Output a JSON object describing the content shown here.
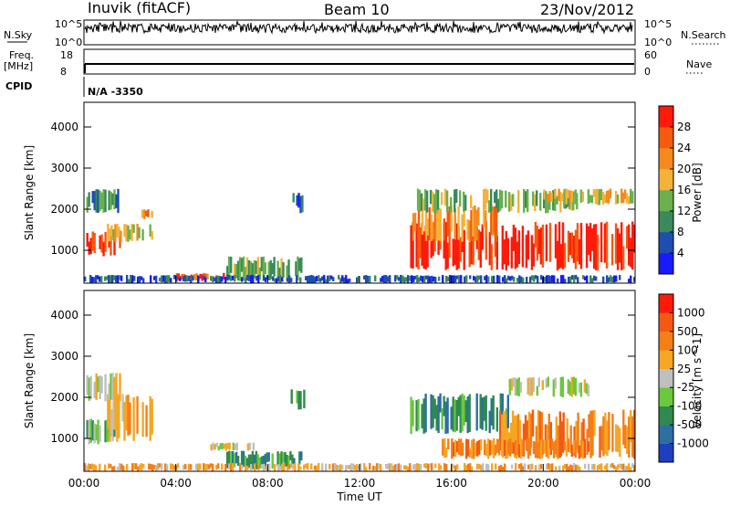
{
  "header": {
    "station": "Inuvik (fitACF)",
    "beam": "Beam 10",
    "date": "23/Nov/2012"
  },
  "aux": {
    "nsky_label": "N.Sky",
    "nsky_ticks": [
      "10^5",
      "10^0"
    ],
    "nsearch_label": "N.Search",
    "nsearch_ticks": [
      "10^5",
      "10^0"
    ],
    "freq_label": "Freq.",
    "freq_unit": "[MHz]",
    "freq_ticks": [
      "18",
      "8"
    ],
    "nave_label": "Nave",
    "nave_ticks": [
      "60",
      "0"
    ],
    "cpid_label": "CPID",
    "cpid_value": "N/A -3350"
  },
  "colors": {
    "power": [
      "#1a1aff",
      "#1e4fb0",
      "#3a8a5c",
      "#6ab04c",
      "#f4b23a",
      "#f48a1e",
      "#f45a10",
      "#ff1a0a"
    ],
    "velocity": [
      "#1f3fbf",
      "#2d6fa0",
      "#2e8a4e",
      "#6ac83c",
      "#bfbfbf",
      "#f5a623",
      "#f47e18",
      "#f25a14",
      "#ff1a0a"
    ]
  },
  "chart_data": [
    {
      "type": "heatmap",
      "quantity": "power",
      "x": [
        "00:00",
        "04:00",
        "08:00",
        "12:00",
        "16:00",
        "20:00",
        "00:00"
      ],
      "xlim": [
        0,
        24
      ],
      "ylabel": "Slant Range [km]",
      "yticks": [
        "1000",
        "2000",
        "3000",
        "4000"
      ],
      "ylim": [
        200,
        4600
      ],
      "colorbar_label": "Power [dB]",
      "colorbar_ticks": [
        "4",
        "8",
        "12",
        "16",
        "20",
        "24",
        "28"
      ],
      "regions": [
        {
          "t0": 0.1,
          "t1": 1.6,
          "r0": 850,
          "r1": 1500,
          "level": 7
        },
        {
          "t0": 1.0,
          "t1": 3.0,
          "r0": 1200,
          "r1": 1650,
          "level": 4
        },
        {
          "t0": 0.1,
          "t1": 1.6,
          "r0": 1900,
          "r1": 2500,
          "level": 2
        },
        {
          "t0": 2.5,
          "t1": 3.0,
          "r0": 1750,
          "r1": 2000,
          "level": 5
        },
        {
          "t0": 6.2,
          "t1": 9.5,
          "r0": 250,
          "r1": 850,
          "level": 3
        },
        {
          "t0": 4.0,
          "t1": 6.2,
          "r0": 250,
          "r1": 450,
          "level": 6
        },
        {
          "t0": 9.0,
          "t1": 9.7,
          "r0": 1900,
          "r1": 2400,
          "level": 1
        },
        {
          "t0": 14.2,
          "t1": 24.0,
          "r0": 500,
          "r1": 1700,
          "level": 7
        },
        {
          "t0": 14.3,
          "t1": 18.0,
          "r0": 1200,
          "r1": 2100,
          "level": 5
        },
        {
          "t0": 14.5,
          "t1": 21.5,
          "r0": 1900,
          "r1": 2500,
          "level": 3
        },
        {
          "t0": 20.0,
          "t1": 24.0,
          "r0": 2100,
          "r1": 2500,
          "level": 4
        },
        {
          "t0": 0.0,
          "t1": 24.0,
          "r0": 200,
          "r1": 400,
          "level": 1
        }
      ]
    },
    {
      "type": "heatmap",
      "quantity": "velocity",
      "x": [
        "00:00",
        "04:00",
        "08:00",
        "12:00",
        "16:00",
        "20:00",
        "00:00"
      ],
      "xlim": [
        0,
        24
      ],
      "xlabel": "Time UT",
      "ylabel": "Slant Range [km]",
      "yticks": [
        "1000",
        "2000",
        "3000",
        "4000"
      ],
      "ylim": [
        200,
        4600
      ],
      "colorbar_label": "Velocity [m s^-1]",
      "colorbar_ticks": [
        "1000",
        "500",
        "100",
        "25",
        "-25",
        "-100",
        "-500",
        "-1000"
      ],
      "regions": [
        {
          "t0": 0.1,
          "t1": 1.6,
          "r0": 850,
          "r1": 1500,
          "level": 3
        },
        {
          "t0": 1.0,
          "t1": 3.0,
          "r0": 900,
          "r1": 2100,
          "level": 5
        },
        {
          "t0": 0.1,
          "t1": 1.6,
          "r0": 1900,
          "r1": 2600,
          "level": 4
        },
        {
          "t0": 6.2,
          "t1": 9.5,
          "r0": 250,
          "r1": 700,
          "level": 2
        },
        {
          "t0": 5.5,
          "t1": 7.5,
          "r0": 700,
          "r1": 900,
          "level": 4
        },
        {
          "t0": 9.0,
          "t1": 9.7,
          "r0": 1700,
          "r1": 2200,
          "level": 2
        },
        {
          "t0": 14.2,
          "t1": 18.5,
          "r0": 1100,
          "r1": 2100,
          "level": 2
        },
        {
          "t0": 18.0,
          "t1": 24.0,
          "r0": 500,
          "r1": 1700,
          "level": 6
        },
        {
          "t0": 15.5,
          "t1": 22.0,
          "r0": 500,
          "r1": 1000,
          "level": 6
        },
        {
          "t0": 18.5,
          "t1": 22.0,
          "r0": 2000,
          "r1": 2500,
          "level": 4
        },
        {
          "t0": 0.0,
          "t1": 24.0,
          "r0": 200,
          "r1": 400,
          "level": 5
        }
      ]
    }
  ]
}
